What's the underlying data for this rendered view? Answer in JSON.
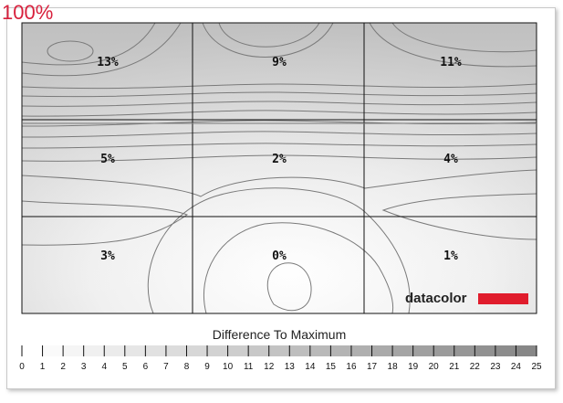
{
  "zoom_label": "100%",
  "chart_data": {
    "type": "heatmap",
    "rows": 3,
    "cols": 3,
    "values": [
      [
        13,
        9,
        11
      ],
      [
        5,
        2,
        4
      ],
      [
        3,
        0,
        1
      ]
    ],
    "value_labels": [
      [
        "13%",
        "9%",
        "11%"
      ],
      [
        "5%",
        "2%",
        "4%"
      ],
      [
        "3%",
        "0%",
        "1%"
      ]
    ],
    "legend_title": "Difference To Maximum",
    "legend_ticks": [
      "0",
      "1",
      "2",
      "3",
      "4",
      "5",
      "6",
      "7",
      "8",
      "9",
      "10",
      "11",
      "12",
      "13",
      "14",
      "15",
      "16",
      "17",
      "18",
      "19",
      "20",
      "21",
      "22",
      "23",
      "24",
      "25"
    ],
    "legend_range": [
      0,
      25
    ],
    "brand": "datacolor",
    "colors": {
      "accent": "#d8203c",
      "brand_bar": "#e01c2c",
      "grid": "#111111",
      "contour": "#7a7a7a"
    }
  }
}
